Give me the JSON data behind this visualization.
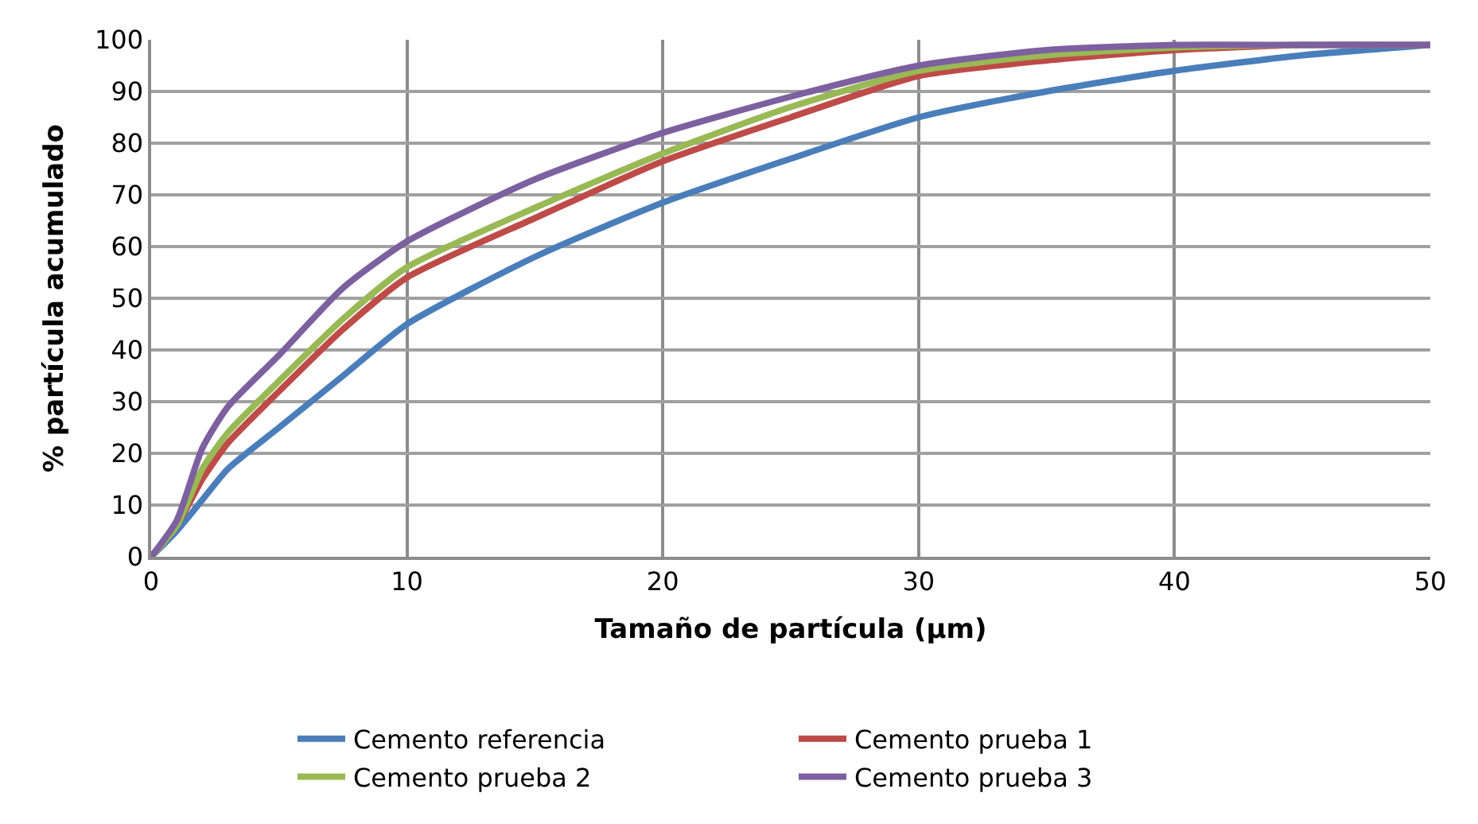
{
  "chart_data": {
    "type": "line",
    "xlabel": "Tamaño de partícula (µm)",
    "ylabel": "% partícula acumulado",
    "x": [
      0,
      1,
      2,
      3,
      5,
      7.5,
      10,
      15,
      20,
      25,
      30,
      35,
      40,
      45,
      50
    ],
    "series": [
      {
        "name": "Cemento referencia",
        "color": "#4a7ebb",
        "values": [
          0,
          5,
          11,
          17,
          25,
          35,
          45,
          58,
          68.5,
          77,
          85,
          90,
          94,
          97,
          99
        ]
      },
      {
        "name": "Cemento prueba 1",
        "color": "#be4b48",
        "values": [
          0,
          6,
          15,
          22,
          32,
          44,
          54,
          65.5,
          76.5,
          85,
          93,
          96,
          98,
          99,
          99
        ]
      },
      {
        "name": "Cemento prueba 2",
        "color": "#98b954",
        "values": [
          0,
          6,
          17,
          24,
          34,
          46,
          56,
          67.5,
          78,
          87,
          94,
          97,
          98.5,
          99,
          99
        ]
      },
      {
        "name": "Cemento prueba 3",
        "color": "#7d60a0",
        "values": [
          0,
          7,
          21,
          29,
          39,
          52,
          61,
          73,
          82,
          89,
          95,
          98,
          99,
          99,
          99
        ]
      }
    ],
    "xlim": [
      0,
      50
    ],
    "xticks": [
      0,
      10,
      20,
      30,
      40,
      50
    ],
    "ylim": [
      0,
      100
    ],
    "yticks": [
      0,
      10,
      20,
      30,
      40,
      50,
      60,
      70,
      80,
      90,
      100
    ],
    "grid": true,
    "legend": "bottom",
    "marker": "none",
    "line_style": "solid"
  }
}
